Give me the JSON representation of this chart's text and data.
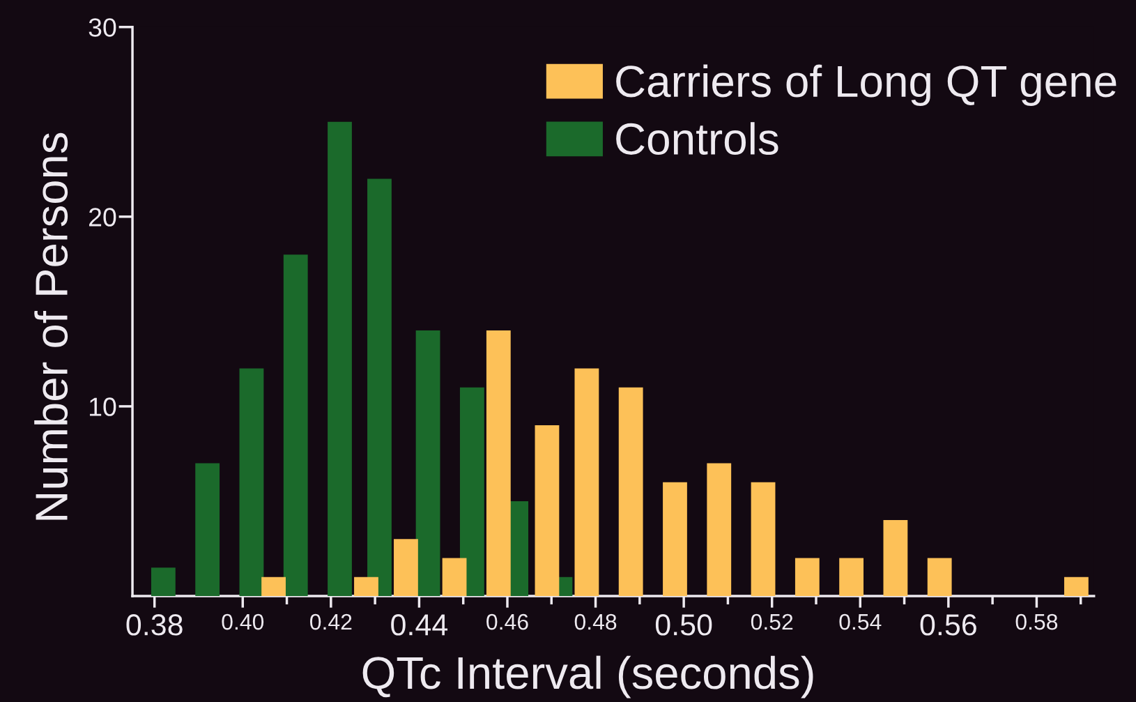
{
  "chart_data": {
    "type": "bar",
    "xlabel": "QTc Interval (seconds)",
    "ylabel": "Number of Persons",
    "xlim": [
      0.375,
      0.593
    ],
    "xticks": [
      {
        "value": 0.38,
        "label": "0.38"
      },
      {
        "value": 0.4,
        "label": "0.40"
      },
      {
        "value": 0.41,
        "label": null
      },
      {
        "value": 0.42,
        "label": "0.42"
      },
      {
        "value": 0.43,
        "label": null
      },
      {
        "value": 0.44,
        "label": "0.44"
      },
      {
        "value": 0.45,
        "label": null
      },
      {
        "value": 0.46,
        "label": "0.46"
      },
      {
        "value": 0.47,
        "label": null
      },
      {
        "value": 0.48,
        "label": "0.48"
      },
      {
        "value": 0.49,
        "label": null
      },
      {
        "value": 0.5,
        "label": "0.50"
      },
      {
        "value": 0.51,
        "label": null
      },
      {
        "value": 0.52,
        "label": "0.52"
      },
      {
        "value": 0.53,
        "label": null
      },
      {
        "value": 0.54,
        "label": "0.54"
      },
      {
        "value": 0.55,
        "label": null
      },
      {
        "value": 0.56,
        "label": "0.56"
      },
      {
        "value": 0.57,
        "label": null
      },
      {
        "value": 0.58,
        "label": "0.58"
      },
      {
        "value": 0.59,
        "label": null
      }
    ],
    "ylim": [
      0,
      30
    ],
    "yticks": [
      10,
      20,
      30
    ],
    "legend": "top right",
    "series": [
      {
        "name": "Carriers of Long QT gene",
        "color": "#fdc158",
        "x": [
          0.407,
          0.428,
          0.437,
          0.448,
          0.458,
          0.469,
          0.478,
          0.488,
          0.498,
          0.508,
          0.518,
          0.528,
          0.538,
          0.548,
          0.558,
          0.589
        ],
        "values": [
          1,
          1,
          3,
          2,
          14,
          9,
          12,
          11,
          6,
          7,
          6,
          2,
          2,
          4,
          2,
          1
        ]
      },
      {
        "name": "Controls",
        "color": "#1b6a2b",
        "x": [
          0.382,
          0.392,
          0.402,
          0.412,
          0.422,
          0.431,
          0.442,
          0.452,
          0.462,
          0.472
        ],
        "values": [
          1.5,
          7,
          12,
          18,
          25,
          22,
          14,
          11,
          5,
          1
        ]
      }
    ]
  }
}
